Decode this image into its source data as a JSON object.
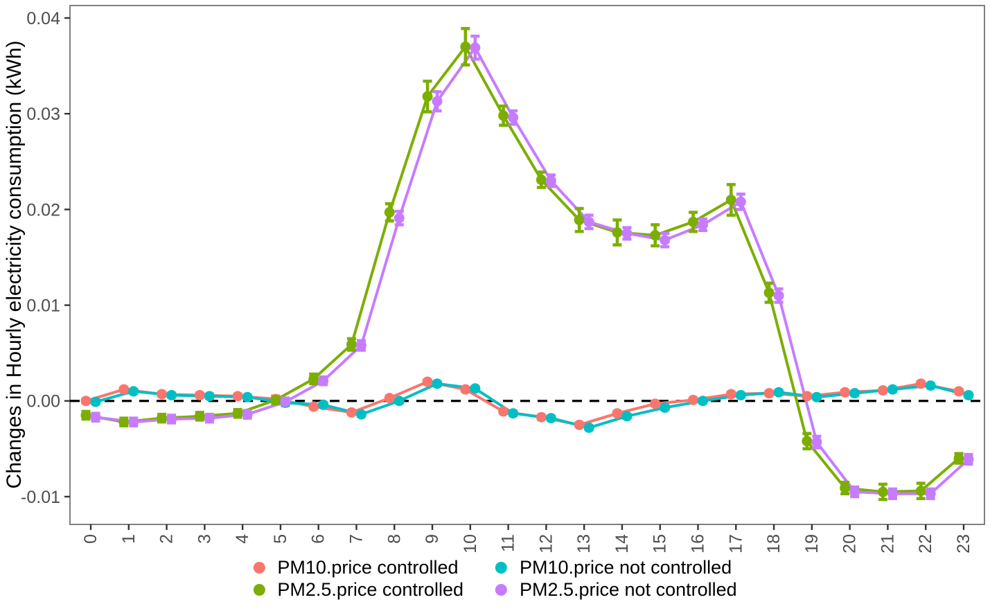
{
  "chart_data": {
    "type": "line",
    "title": "",
    "xlabel": "",
    "ylabel": "Changes in Hourly electricity consumption (kWh)",
    "x": [
      0,
      1,
      2,
      3,
      4,
      5,
      6,
      7,
      8,
      9,
      10,
      11,
      12,
      13,
      14,
      15,
      16,
      17,
      18,
      19,
      20,
      21,
      22,
      23
    ],
    "xtick_labels": [
      "0",
      "1",
      "2",
      "3",
      "4",
      "5",
      "6",
      "7",
      "8",
      "9",
      "10",
      "11",
      "12",
      "13",
      "14",
      "15",
      "16",
      "17",
      "18",
      "19",
      "20",
      "21",
      "22",
      "23"
    ],
    "yticks": [
      0.04,
      0.03,
      0.02,
      0.01,
      0.0,
      -0.01
    ],
    "ytick_labels": [
      "0.04",
      "0.03",
      "0.02",
      "0.01",
      "0.00",
      "-0.01"
    ],
    "ylim": [
      -0.0129,
      0.0413
    ],
    "grid": false,
    "legend_position": "bottom",
    "legend_order": [
      0,
      2,
      1,
      3
    ],
    "zero_line": {
      "y": 0,
      "style": "dashed",
      "color": "#000000"
    },
    "axis_color": "#7f7f7f",
    "tick_label_color": "#4d4d4d",
    "series": [
      {
        "name": "PM10.price controlled",
        "color": "#F8766D",
        "dodge": -7,
        "values": [
          0.0,
          0.0012,
          0.0007,
          0.0006,
          0.0005,
          0.0002,
          -0.0006,
          -0.0012,
          0.0003,
          0.002,
          0.0012,
          -0.0011,
          -0.0017,
          -0.0025,
          -0.0013,
          -0.0003,
          0.0001,
          0.0007,
          0.0008,
          0.0005,
          0.0009,
          0.0011,
          0.0018,
          0.001
        ],
        "errors": [
          0.0002,
          0.0002,
          0.0002,
          0.0002,
          0.0002,
          0.0002,
          0.0002,
          0.0002,
          0.0002,
          0.0002,
          0.0002,
          0.0002,
          0.0002,
          0.0002,
          0.0002,
          0.0002,
          0.0002,
          0.0002,
          0.0002,
          0.0002,
          0.0002,
          0.0002,
          0.0002,
          0.0002
        ]
      },
      {
        "name": "PM2.5.price controlled",
        "color": "#7CAE00",
        "dodge": -7,
        "values": [
          -0.0015,
          -0.0022,
          -0.0018,
          -0.0016,
          -0.0013,
          0.0001,
          0.0023,
          0.0059,
          0.0197,
          0.0318,
          0.037,
          0.0298,
          0.0231,
          0.0189,
          0.0176,
          0.0173,
          0.0187,
          0.021,
          0.0113,
          -0.0042,
          -0.0091,
          -0.0095,
          -0.0094,
          -0.006
        ],
        "errors": [
          0.0004,
          0.0004,
          0.0004,
          0.0004,
          0.0004,
          0.0004,
          0.0005,
          0.0006,
          0.0009,
          0.0016,
          0.0019,
          0.001,
          0.0008,
          0.0012,
          0.0013,
          0.0011,
          0.001,
          0.0016,
          0.001,
          0.0008,
          0.0006,
          0.0008,
          0.0008,
          0.0005
        ]
      },
      {
        "name": "PM10.price not controlled",
        "color": "#00BFC4",
        "dodge": 7,
        "values": [
          -0.0001,
          0.001,
          0.0006,
          0.0005,
          0.0004,
          -0.0002,
          -0.0004,
          -0.0014,
          0.0,
          0.0018,
          0.0013,
          -0.0013,
          -0.0018,
          -0.0028,
          -0.0016,
          -0.0007,
          0.0,
          0.0006,
          0.0009,
          0.0004,
          0.0008,
          0.0012,
          0.0016,
          0.0006
        ],
        "errors": [
          0.0002,
          0.0002,
          0.0002,
          0.0002,
          0.0002,
          0.0002,
          0.0002,
          0.0002,
          0.0002,
          0.0002,
          0.0002,
          0.0002,
          0.0002,
          0.0002,
          0.0002,
          0.0002,
          0.0002,
          0.0002,
          0.0002,
          0.0002,
          0.0002,
          0.0002,
          0.0002,
          0.0002
        ]
      },
      {
        "name": "PM2.5.price not controlled",
        "color": "#C77CFF",
        "dodge": 7,
        "values": [
          -0.0017,
          -0.0022,
          -0.0019,
          -0.0018,
          -0.0014,
          -0.0001,
          0.0021,
          0.0058,
          0.0191,
          0.0313,
          0.0369,
          0.0296,
          0.023,
          0.0187,
          0.0175,
          0.0168,
          0.0184,
          0.0208,
          0.011,
          -0.0043,
          -0.0095,
          -0.0097,
          -0.0097,
          -0.0061
        ],
        "errors": [
          0.0004,
          0.0004,
          0.0004,
          0.0004,
          0.0004,
          0.0004,
          0.0004,
          0.0005,
          0.0007,
          0.001,
          0.0012,
          0.0007,
          0.0006,
          0.0007,
          0.0006,
          0.0007,
          0.0006,
          0.0008,
          0.0007,
          0.0006,
          0.0005,
          0.0005,
          0.0005,
          0.0005
        ]
      }
    ]
  }
}
